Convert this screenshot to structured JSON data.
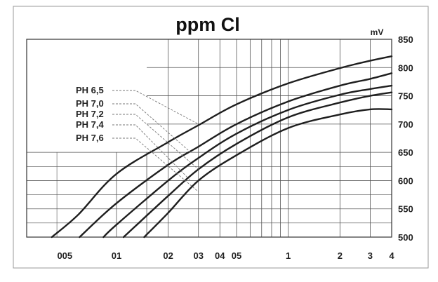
{
  "chart_data": {
    "type": "line",
    "title": "ppm Cl",
    "ylabel": "mV",
    "xlabel": "",
    "x_scale": "log",
    "xlim": [
      0.03,
      4
    ],
    "ylim": [
      500,
      850
    ],
    "x_ticks": [
      {
        "value": 0.05,
        "label": "005"
      },
      {
        "value": 0.1,
        "label": "01"
      },
      {
        "value": 0.2,
        "label": "02"
      },
      {
        "value": 0.3,
        "label": "03"
      },
      {
        "value": 0.4,
        "label": "04"
      },
      {
        "value": 0.5,
        "label": "05"
      },
      {
        "value": 1,
        "label": "1"
      },
      {
        "value": 2,
        "label": "2"
      },
      {
        "value": 3,
        "label": "3"
      },
      {
        "value": 4,
        "label": "4"
      }
    ],
    "y_ticks": [
      500,
      550,
      600,
      650,
      700,
      750,
      800,
      850
    ],
    "grid": true,
    "legend_placement": "left",
    "series": [
      {
        "name": "PH 6,5",
        "x": [
          0.042,
          0.06,
          0.1,
          0.2,
          0.3,
          0.5,
          1,
          2,
          3,
          4
        ],
        "y": [
          500,
          540,
          612,
          668,
          698,
          735,
          772,
          799,
          812,
          820
        ]
      },
      {
        "name": "PH 7,0",
        "x": [
          0.061,
          0.1,
          0.2,
          0.3,
          0.5,
          1,
          2,
          3,
          4
        ],
        "y": [
          500,
          560,
          628,
          660,
          700,
          740,
          768,
          780,
          790
        ]
      },
      {
        "name": "PH 7,2",
        "x": [
          0.084,
          0.1,
          0.2,
          0.3,
          0.5,
          1,
          2,
          3,
          4
        ],
        "y": [
          500,
          522,
          600,
          640,
          683,
          725,
          752,
          762,
          768
        ]
      },
      {
        "name": "PH 7,4",
        "x": [
          0.11,
          0.2,
          0.3,
          0.5,
          1,
          2,
          3,
          4
        ],
        "y": [
          500,
          573,
          620,
          665,
          712,
          738,
          750,
          756
        ]
      },
      {
        "name": "PH 7,6",
        "x": [
          0.145,
          0.2,
          0.3,
          0.5,
          1,
          2,
          3,
          4
        ],
        "y": [
          500,
          543,
          600,
          645,
          693,
          717,
          726,
          726
        ]
      }
    ],
    "colors": {
      "curve": "#1e1e1e",
      "grid": "#555555",
      "leader": "#777777"
    }
  }
}
